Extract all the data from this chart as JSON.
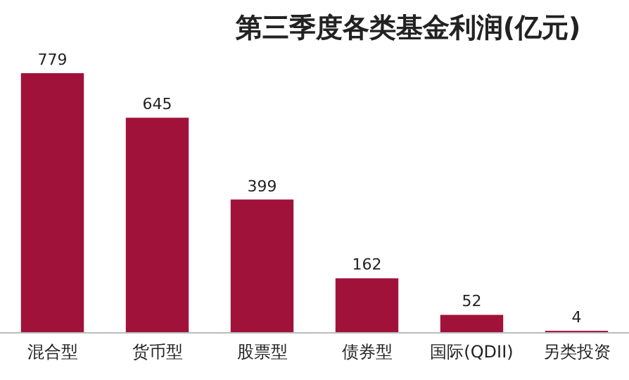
{
  "chart_data": {
    "type": "bar",
    "title": "第三季度各类基金利润(亿元)",
    "categories": [
      "混合型",
      "货币型",
      "股票型",
      "债券型",
      "国际(QDII)",
      "另类投资"
    ],
    "values": [
      779,
      645,
      399,
      162,
      52,
      4
    ],
    "color": "#a0123a",
    "data_labels": true
  }
}
